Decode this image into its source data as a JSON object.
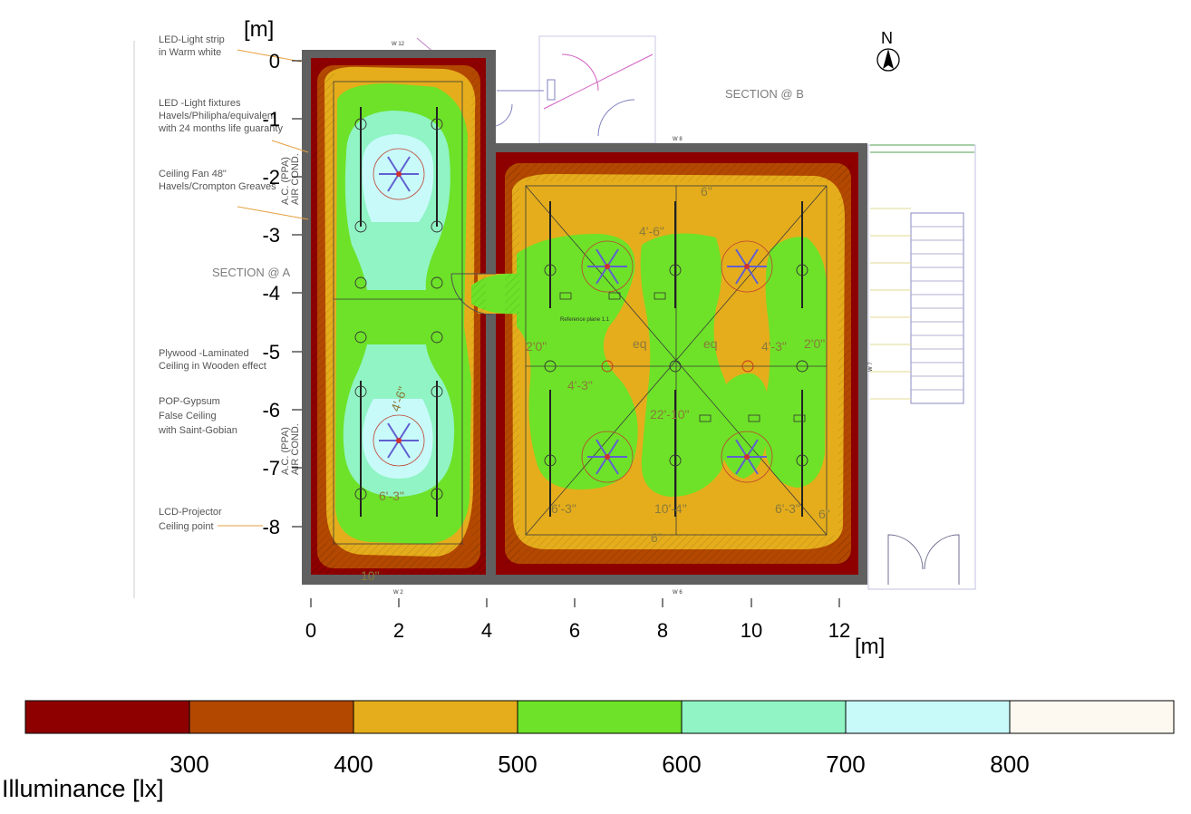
{
  "axes": {
    "y_unit": "[m]",
    "x_unit": "[m]",
    "y_ticks": [
      "0",
      "-1",
      "-2",
      "-3",
      "-4",
      "-5",
      "-6",
      "-7",
      "-8"
    ],
    "x_ticks": [
      "0",
      "2",
      "4",
      "6",
      "8",
      "10",
      "12"
    ]
  },
  "north_label": "N",
  "section_labels": {
    "a": "SECTION @ A",
    "b": "SECTION @ B"
  },
  "notes": [
    {
      "lines": [
        "LED-Light strip",
        "in Warm white"
      ]
    },
    {
      "lines": [
        "LED -Light fixtures",
        "Havels/Philipha/equivalent",
        "with 24 months life guaranty"
      ]
    },
    {
      "lines": [
        "Ceiling Fan 48\"",
        "Havels/Crompton Greaves"
      ]
    },
    {
      "lines": [
        "Plywood -Laminated",
        "Ceiling in Wooden effect"
      ]
    },
    {
      "lines": [
        "POP-Gypsum",
        "False Ceiling",
        "with Saint-Gobian"
      ]
    },
    {
      "lines": [
        "LCD-Projector",
        "Ceiling point"
      ]
    }
  ],
  "plan_texts": {
    "ac_label_1": "A.C. (PPA)",
    "ac_label_2": "AIR COND.",
    "ref_plane": "Reference plane 1.1",
    "wall_w12": "W 12",
    "wall_w8": "W 8",
    "wall_w2": "W 2",
    "wall_w6": "W 6",
    "wall_w7": "W 7",
    "dims": [
      "6\"",
      "4'-6\"",
      "2'0\"",
      "4'-3\"",
      "eq",
      "eq",
      "4'-3\"",
      "2'0\"",
      "22'-10\"",
      "6'-3\"",
      "10'-4\"",
      "6'-3\"",
      "6\"",
      "6\"",
      "10\"",
      "6'-3\"",
      "4'-6\""
    ]
  },
  "legend": {
    "title": "Illuminance [lx]",
    "breaks": [
      "300",
      "400",
      "500",
      "600",
      "700",
      "800"
    ],
    "colors": [
      "#8e0000",
      "#b34800",
      "#e5ad1c",
      "#6de228",
      "#90f4c4",
      "#c8fafa",
      "#fdf8f0"
    ]
  },
  "palette": {
    "wall": "#606060",
    "band_dark": "#8e0000",
    "band_brown": "#b34800",
    "band_orange": "#e5ad1c",
    "band_green": "#6de228",
    "band_mint": "#90f4c4",
    "band_cyan": "#c8fafa"
  }
}
